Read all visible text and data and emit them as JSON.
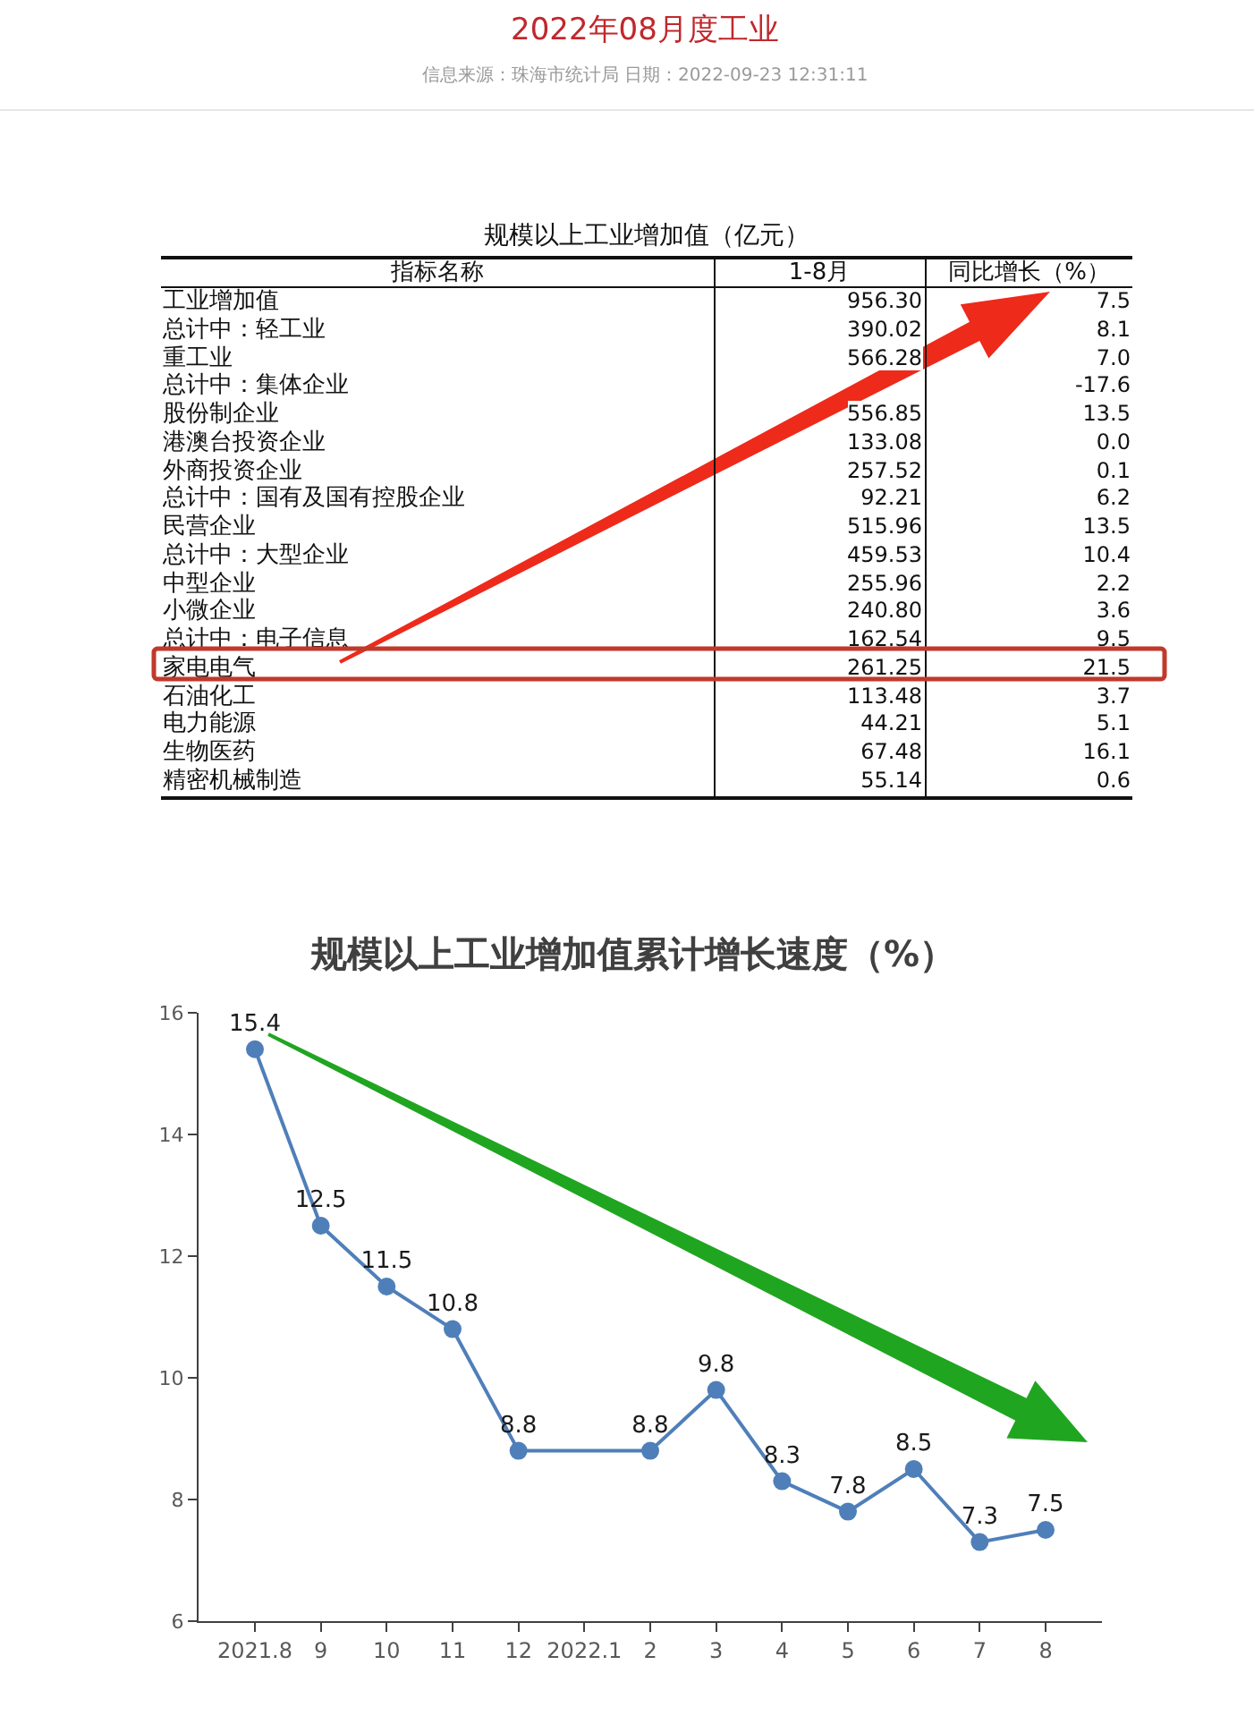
{
  "chart_data": [
    {
      "type": "other",
      "title": "2022年08月度工业",
      "subtitle": "信息来源：珠海市统计局 日期：2022-09-23 12:31:11"
    },
    {
      "type": "other",
      "title": "规模以上工业增加值（亿元）",
      "ylabel": "指标名称",
      "categories": [
        "工业增加值",
        "总计中：轻工业",
        "重工业",
        "总计中：集体企业",
        "股份制企业",
        "港澳台投资企业",
        "外商投资企业",
        "总计中：国有及国有控股企业",
        "民营企业",
        "总计中：大型企业",
        "中型企业",
        "小微企业",
        "总计中：电子信息",
        "家电电气",
        "石油化工",
        "电力能源",
        "生物医药",
        "精密机械制造"
      ],
      "series": [
        {
          "name": "1-8月",
          "values": [
            956.3,
            390.02,
            566.28,
            null,
            556.85,
            133.08,
            257.52,
            92.21,
            515.96,
            459.53,
            255.96,
            240.8,
            162.54,
            261.25,
            113.48,
            44.21,
            67.48,
            55.14
          ],
          "value_labels": [
            "956.30",
            "390.02",
            "566.28",
            null,
            "556.85",
            "133.08",
            "257.52",
            "92.21",
            "515.96",
            "459.53",
            "255.96",
            "240.80",
            "162.54",
            "261.25",
            "113.48",
            "44.21",
            "67.48",
            "55.14"
          ]
        },
        {
          "name": "同比增长（%）",
          "values": [
            7.5,
            8.1,
            7.0,
            -17.6,
            13.5,
            0.0,
            0.1,
            6.2,
            13.5,
            10.4,
            2.2,
            3.6,
            9.5,
            21.5,
            3.7,
            5.1,
            16.1,
            0.6
          ],
          "value_labels": [
            "7.5",
            "8.1",
            "7.0",
            "-17.6",
            "13.5",
            "0.0",
            "0.1",
            "6.2",
            "13.5",
            "10.4",
            "2.2",
            "3.6",
            "9.5",
            "21.5",
            "3.7",
            "5.1",
            "16.1",
            "0.6"
          ]
        }
      ]
    },
    {
      "type": "line",
      "title": "规模以上工业增加值累计增长速度（%）",
      "categories": [
        "2021.8",
        "9",
        "10",
        "11",
        "12",
        "2022.1",
        "2",
        "3",
        "4",
        "5",
        "6",
        "7",
        "8"
      ],
      "series": [
        {
          "color": "#4f7fb9",
          "x": [
            "2021.8",
            "9",
            "10",
            "11",
            "12",
            "2",
            "3",
            "4",
            "5",
            "6",
            "7",
            "8"
          ],
          "values": [
            15.4,
            12.5,
            11.5,
            10.8,
            8.8,
            8.8,
            9.8,
            8.3,
            7.8,
            8.5,
            7.3,
            7.5
          ]
        }
      ],
      "ylim": [
        6,
        16
      ],
      "yticks": [
        6,
        8,
        10,
        12,
        14,
        16
      ],
      "grid": false,
      "marker": "circle",
      "data_labels": true
    }
  ]
}
